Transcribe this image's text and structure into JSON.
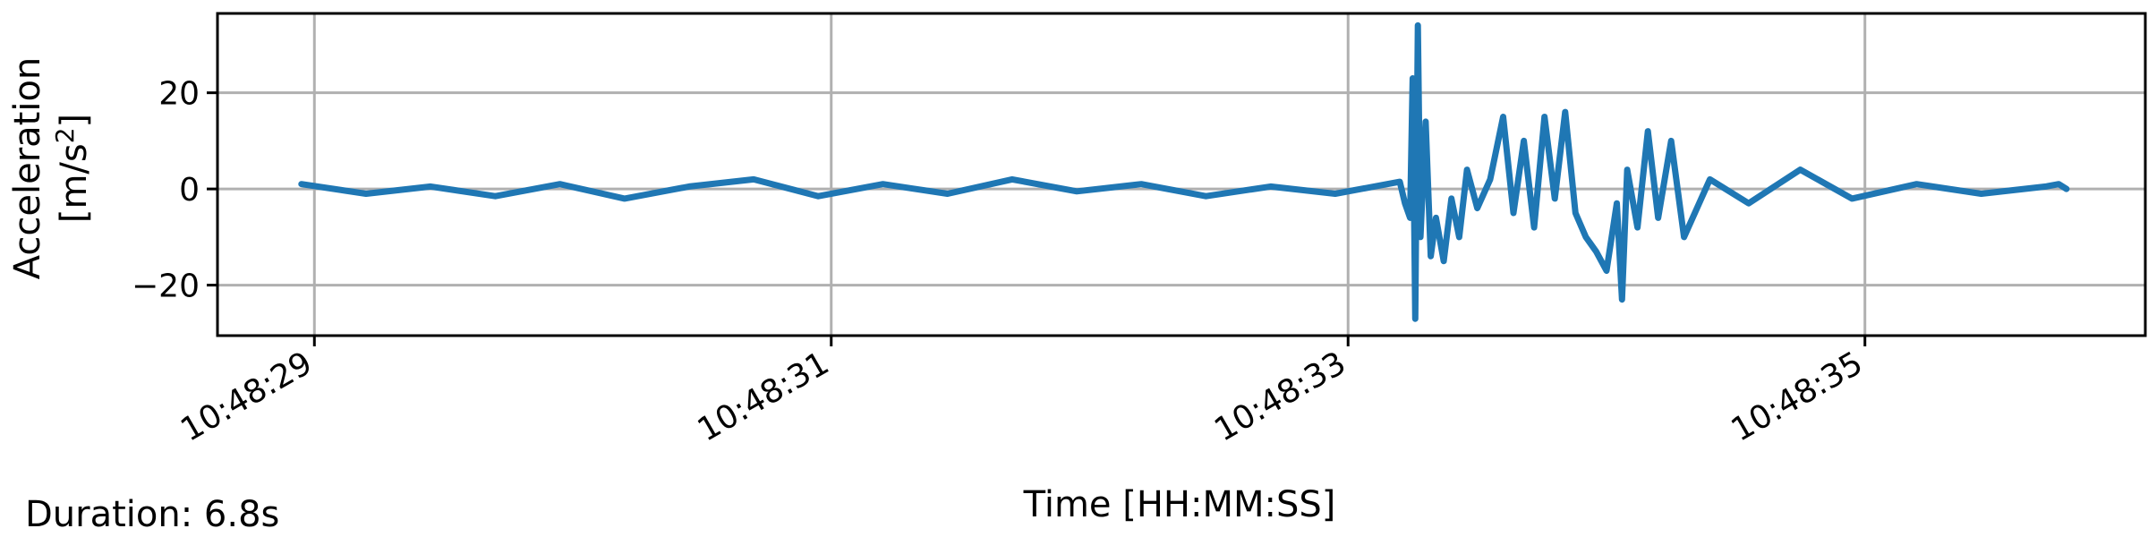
{
  "footer": {
    "duration": "Duration: 6.8s"
  },
  "chart_data": {
    "type": "line",
    "title": "",
    "xlabel": "Time [HH:MM:SS]",
    "ylabel_line1": "Acceleration",
    "ylabel_line2_prefix": "[m/s",
    "ylabel_line2_sup": "2",
    "ylabel_line2_suffix": "]",
    "xlim": [
      "10:48:28.625",
      "10:48:36.085"
    ],
    "ylim": [
      -30.5,
      36.5
    ],
    "grid": true,
    "legend": "none",
    "color": "#1f77b4",
    "x_ticks": [
      "10:48:29",
      "10:48:31",
      "10:48:33",
      "10:48:35"
    ],
    "y_ticks": [
      {
        "value": 20,
        "label": "20"
      },
      {
        "value": 0,
        "label": "0"
      },
      {
        "value": -20,
        "label": "−20"
      }
    ],
    "series": [
      {
        "x": [
          "10:48:28.95",
          "10:48:29.20",
          "10:48:29.45",
          "10:48:29.70",
          "10:48:29.95",
          "10:48:30.20",
          "10:48:30.45",
          "10:48:30.70",
          "10:48:30.95",
          "10:48:31.20",
          "10:48:31.45",
          "10:48:31.70",
          "10:48:31.95",
          "10:48:32.20",
          "10:48:32.45",
          "10:48:32.70",
          "10:48:32.95",
          "10:48:33.20",
          "10:48:33.22",
          "10:48:33.24",
          "10:48:33.25",
          "10:48:33.26",
          "10:48:33.27",
          "10:48:33.28",
          "10:48:33.30",
          "10:48:33.32",
          "10:48:33.34",
          "10:48:33.37",
          "10:48:33.40",
          "10:48:33.43",
          "10:48:33.46",
          "10:48:33.50",
          "10:48:33.55",
          "10:48:33.60",
          "10:48:33.64",
          "10:48:33.68",
          "10:48:33.72",
          "10:48:33.76",
          "10:48:33.80",
          "10:48:33.84",
          "10:48:33.88",
          "10:48:33.92",
          "10:48:33.96",
          "10:48:34.00",
          "10:48:34.04",
          "10:48:34.06",
          "10:48:34.08",
          "10:48:34.12",
          "10:48:34.16",
          "10:48:34.20",
          "10:48:34.25",
          "10:48:34.30",
          "10:48:34.40",
          "10:48:34.55",
          "10:48:34.75",
          "10:48:34.95",
          "10:48:35.20",
          "10:48:35.45",
          "10:48:35.70",
          "10:48:35.75",
          "10:48:35.78"
        ],
        "y": [
          1,
          -1,
          0.5,
          -1.5,
          1,
          -2,
          0.5,
          2,
          -1.5,
          1,
          -1,
          2,
          -0.5,
          1,
          -1.5,
          0.5,
          -1,
          1.5,
          -3,
          -6,
          23,
          -27,
          34,
          -10,
          14,
          -14,
          -6,
          -15,
          -2,
          -10,
          4,
          -4,
          2,
          15,
          -5,
          10,
          -8,
          15,
          -2,
          16,
          -5,
          -10,
          -13,
          -17,
          -3,
          -23,
          4,
          -8,
          12,
          -6,
          10,
          -10,
          2,
          -3,
          4,
          -2,
          1,
          -1,
          0.5,
          1,
          0
        ]
      }
    ]
  }
}
